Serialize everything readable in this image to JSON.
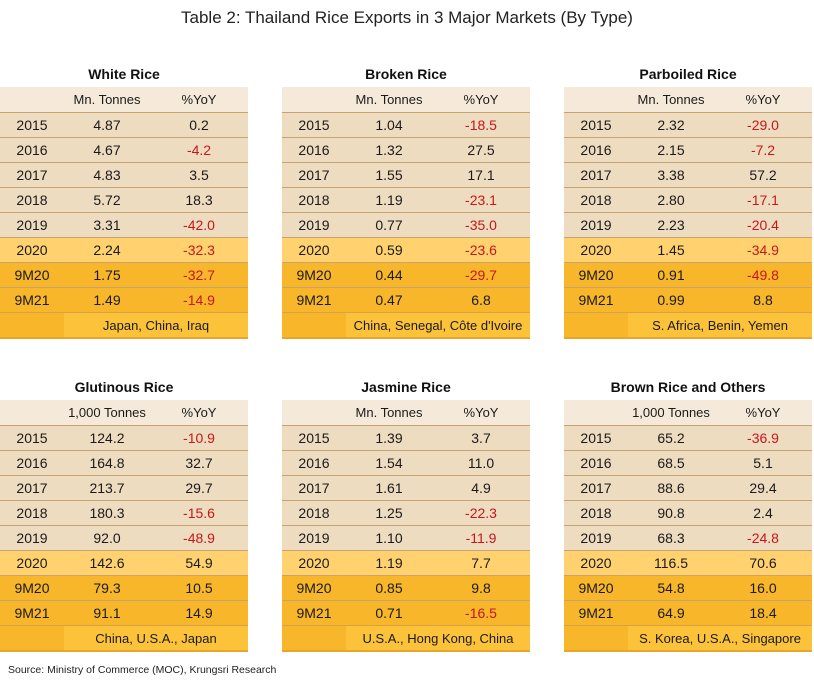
{
  "title": "Table 2: Thailand Rice Exports in 3 Major Markets (By Type)",
  "source": "Source: Ministry of Commerce (MOC), Krungsri Research",
  "panels": [
    {
      "title": "White Rice",
      "unit": "Mn. Tonnes",
      "yoy_label": "%YoY",
      "rows": [
        {
          "label": "2015",
          "value": "4.87",
          "yoy": "0.2"
        },
        {
          "label": "2016",
          "value": "4.67",
          "yoy": "-4.2"
        },
        {
          "label": "2017",
          "value": "4.83",
          "yoy": "3.5"
        },
        {
          "label": "2018",
          "value": "5.72",
          "yoy": "18.3"
        },
        {
          "label": "2019",
          "value": "3.31",
          "yoy": "-42.0"
        },
        {
          "label": "2020",
          "value": "2.24",
          "yoy": "-32.3"
        },
        {
          "label": "9M20",
          "value": "1.75",
          "yoy": "-32.7"
        },
        {
          "label": "9M21",
          "value": "1.49",
          "yoy": "-14.9"
        }
      ],
      "markets": "Japan, China, Iraq"
    },
    {
      "title": "Broken Rice",
      "unit": "Mn. Tonnes",
      "yoy_label": "%YoY",
      "rows": [
        {
          "label": "2015",
          "value": "1.04",
          "yoy": "-18.5"
        },
        {
          "label": "2016",
          "value": "1.32",
          "yoy": "27.5"
        },
        {
          "label": "2017",
          "value": "1.55",
          "yoy": "17.1"
        },
        {
          "label": "2018",
          "value": "1.19",
          "yoy": "-23.1"
        },
        {
          "label": "2019",
          "value": "0.77",
          "yoy": "-35.0"
        },
        {
          "label": "2020",
          "value": "0.59",
          "yoy": "-23.6"
        },
        {
          "label": "9M20",
          "value": "0.44",
          "yoy": "-29.7"
        },
        {
          "label": "9M21",
          "value": "0.47",
          "yoy": "6.8"
        }
      ],
      "markets": "China, Senegal, Côte d'Ivoire"
    },
    {
      "title": "Parboiled Rice",
      "unit": "Mn. Tonnes",
      "yoy_label": "%YoY",
      "rows": [
        {
          "label": "2015",
          "value": "2.32",
          "yoy": "-29.0"
        },
        {
          "label": "2016",
          "value": "2.15",
          "yoy": "-7.2"
        },
        {
          "label": "2017",
          "value": "3.38",
          "yoy": "57.2"
        },
        {
          "label": "2018",
          "value": "2.80",
          "yoy": "-17.1"
        },
        {
          "label": "2019",
          "value": "2.23",
          "yoy": "-20.4"
        },
        {
          "label": "2020",
          "value": "1.45",
          "yoy": "-34.9"
        },
        {
          "label": "9M20",
          "value": "0.91",
          "yoy": "-49.8"
        },
        {
          "label": "9M21",
          "value": "0.99",
          "yoy": "8.8"
        }
      ],
      "markets": "S. Africa, Benin, Yemen"
    },
    {
      "title": "Glutinous Rice",
      "unit": "1,000 Tonnes",
      "yoy_label": "%YoY",
      "rows": [
        {
          "label": "2015",
          "value": "124.2",
          "yoy": "-10.9"
        },
        {
          "label": "2016",
          "value": "164.8",
          "yoy": "32.7"
        },
        {
          "label": "2017",
          "value": "213.7",
          "yoy": "29.7"
        },
        {
          "label": "2018",
          "value": "180.3",
          "yoy": "-15.6"
        },
        {
          "label": "2019",
          "value": "92.0",
          "yoy": "-48.9"
        },
        {
          "label": "2020",
          "value": "142.6",
          "yoy": "54.9"
        },
        {
          "label": "9M20",
          "value": "79.3",
          "yoy": "10.5"
        },
        {
          "label": "9M21",
          "value": "91.1",
          "yoy": "14.9"
        }
      ],
      "markets": "China, U.S.A., Japan"
    },
    {
      "title": "Jasmine Rice",
      "unit": "Mn. Tonnes",
      "yoy_label": "%YoY",
      "rows": [
        {
          "label": "2015",
          "value": "1.39",
          "yoy": "3.7"
        },
        {
          "label": "2016",
          "value": "1.54",
          "yoy": "11.0"
        },
        {
          "label": "2017",
          "value": "1.61",
          "yoy": "4.9"
        },
        {
          "label": "2018",
          "value": "1.25",
          "yoy": "-22.3"
        },
        {
          "label": "2019",
          "value": "1.10",
          "yoy": "-11.9"
        },
        {
          "label": "2020",
          "value": "1.19",
          "yoy": "7.7"
        },
        {
          "label": "9M20",
          "value": "0.85",
          "yoy": "9.8"
        },
        {
          "label": "9M21",
          "value": "0.71",
          "yoy": "-16.5"
        }
      ],
      "markets": "U.S.A., Hong Kong, China"
    },
    {
      "title": "Brown Rice and Others",
      "unit": "1,000 Tonnes",
      "yoy_label": "%YoY",
      "rows": [
        {
          "label": "2015",
          "value": "65.2",
          "yoy": "-36.9"
        },
        {
          "label": "2016",
          "value": "68.5",
          "yoy": "5.1"
        },
        {
          "label": "2017",
          "value": "88.6",
          "yoy": "29.4"
        },
        {
          "label": "2018",
          "value": "90.8",
          "yoy": "2.4"
        },
        {
          "label": "2019",
          "value": "68.3",
          "yoy": "-24.8"
        },
        {
          "label": "2020",
          "value": "116.5",
          "yoy": "70.6"
        },
        {
          "label": "9M20",
          "value": "54.8",
          "yoy": "16.0"
        },
        {
          "label": "9M21",
          "value": "64.9",
          "yoy": "18.4"
        }
      ],
      "markets": "S. Korea, U.S.A., Singapore"
    }
  ],
  "colors": {
    "negative": "#c8161d",
    "header_bg": "#f5ead9",
    "year_row_bg": "#eedcc0",
    "row_2020_bg": "#ffd26f",
    "row_9m_bg": "#f8b62b"
  }
}
